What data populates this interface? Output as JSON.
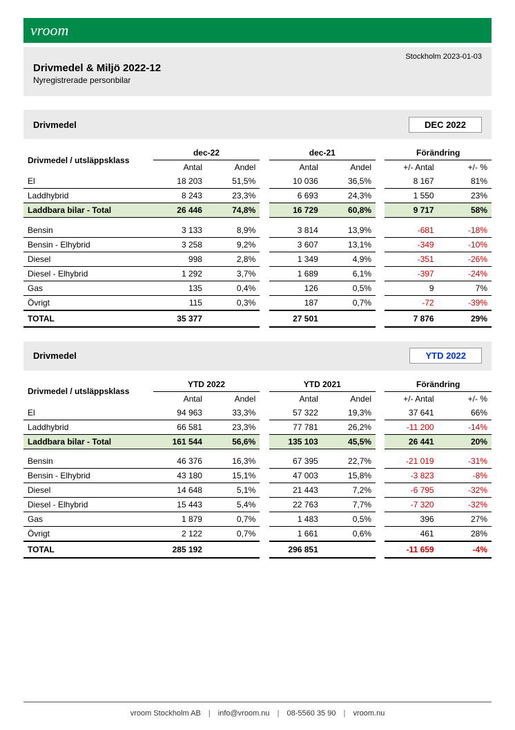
{
  "logo_text": "vroom",
  "date_top": "Stockholm 2023-01-03",
  "title": "Drivmedel & Miljö 2022-12",
  "subtitle": "Nyregistrerade personbilar",
  "colors": {
    "banner": "#008a4a",
    "section_bg": "#eaeaea",
    "highlight_row": "#ddebd1",
    "negative": "#cc0000",
    "badge_blue": "#0033cc"
  },
  "sections": [
    {
      "title": "Drivmedel",
      "badge": "DEC 2022",
      "badge_style": "black",
      "col_group_labels": [
        "dec-22",
        "dec-21",
        "Förändring"
      ],
      "row_header": "Drivmedel / utsläppsklass",
      "sub_headers": [
        "Antal",
        "Andel",
        "Antal",
        "Andel",
        "+/- Antal",
        "+/- %"
      ],
      "rows": [
        {
          "label": "El",
          "c1": "18 203",
          "c2": "51,5%",
          "c3": "10 036",
          "c4": "36,5%",
          "c5": "8 167",
          "c6": "81%",
          "neg": false
        },
        {
          "label": "Laddhybrid",
          "c1": "8 243",
          "c2": "23,3%",
          "c3": "6 693",
          "c4": "24,3%",
          "c5": "1 550",
          "c6": "23%",
          "neg": false
        }
      ],
      "highlight": {
        "label": "Laddbara bilar - Total",
        "c1": "26 446",
        "c2": "74,8%",
        "c3": "16 729",
        "c4": "60,8%",
        "c5": "9 717",
        "c6": "58%",
        "neg": false
      },
      "rows2": [
        {
          "label": "Bensin",
          "c1": "3 133",
          "c2": "8,9%",
          "c3": "3 814",
          "c4": "13,9%",
          "c5": "-681",
          "c6": "-18%",
          "neg": true
        },
        {
          "label": "Bensin - Elhybrid",
          "c1": "3 258",
          "c2": "9,2%",
          "c3": "3 607",
          "c4": "13,1%",
          "c5": "-349",
          "c6": "-10%",
          "neg": true
        },
        {
          "label": "Diesel",
          "c1": "998",
          "c2": "2,8%",
          "c3": "1 349",
          "c4": "4,9%",
          "c5": "-351",
          "c6": "-26%",
          "neg": true
        },
        {
          "label": "Diesel - Elhybrid",
          "c1": "1 292",
          "c2": "3,7%",
          "c3": "1 689",
          "c4": "6,1%",
          "c5": "-397",
          "c6": "-24%",
          "neg": true
        },
        {
          "label": "Gas",
          "c1": "135",
          "c2": "0,4%",
          "c3": "126",
          "c4": "0,5%",
          "c5": "9",
          "c6": "7%",
          "neg": false
        },
        {
          "label": "Övrigt",
          "c1": "115",
          "c2": "0,3%",
          "c3": "187",
          "c4": "0,7%",
          "c5": "-72",
          "c6": "-39%",
          "neg": true
        }
      ],
      "total": {
        "label": "TOTAL",
        "c1": "35 377",
        "c2": "",
        "c3": "27 501",
        "c4": "",
        "c5": "7 876",
        "c6": "29%",
        "neg": false
      }
    },
    {
      "title": "Drivmedel",
      "badge": "YTD 2022",
      "badge_style": "blue",
      "col_group_labels": [
        "YTD 2022",
        "YTD 2021",
        "Förändring"
      ],
      "row_header": "Drivmedel / utsläppsklass",
      "sub_headers": [
        "Antal",
        "Andel",
        "Antal",
        "Andel",
        "+/- Antal",
        "+/- %"
      ],
      "rows": [
        {
          "label": "El",
          "c1": "94 963",
          "c2": "33,3%",
          "c3": "57 322",
          "c4": "19,3%",
          "c5": "37 641",
          "c6": "66%",
          "neg": false
        },
        {
          "label": "Laddhybrid",
          "c1": "66 581",
          "c2": "23,3%",
          "c3": "77 781",
          "c4": "26,2%",
          "c5": "-11 200",
          "c6": "-14%",
          "neg": true
        }
      ],
      "highlight": {
        "label": "Laddbara bilar - Total",
        "c1": "161 544",
        "c2": "56,6%",
        "c3": "135 103",
        "c4": "45,5%",
        "c5": "26 441",
        "c6": "20%",
        "neg": false
      },
      "rows2": [
        {
          "label": "Bensin",
          "c1": "46 376",
          "c2": "16,3%",
          "c3": "67 395",
          "c4": "22,7%",
          "c5": "-21 019",
          "c6": "-31%",
          "neg": true
        },
        {
          "label": "Bensin - Elhybrid",
          "c1": "43 180",
          "c2": "15,1%",
          "c3": "47 003",
          "c4": "15,8%",
          "c5": "-3 823",
          "c6": "-8%",
          "neg": true
        },
        {
          "label": "Diesel",
          "c1": "14 648",
          "c2": "5,1%",
          "c3": "21 443",
          "c4": "7,2%",
          "c5": "-6 795",
          "c6": "-32%",
          "neg": true
        },
        {
          "label": "Diesel - Elhybrid",
          "c1": "15 443",
          "c2": "5,4%",
          "c3": "22 763",
          "c4": "7,7%",
          "c5": "-7 320",
          "c6": "-32%",
          "neg": true
        },
        {
          "label": "Gas",
          "c1": "1 879",
          "c2": "0,7%",
          "c3": "1 483",
          "c4": "0,5%",
          "c5": "396",
          "c6": "27%",
          "neg": false
        },
        {
          "label": "Övrigt",
          "c1": "2 122",
          "c2": "0,7%",
          "c3": "1 661",
          "c4": "0,6%",
          "c5": "461",
          "c6": "28%",
          "neg": false
        }
      ],
      "total": {
        "label": "TOTAL",
        "c1": "285 192",
        "c2": "",
        "c3": "296 851",
        "c4": "",
        "c5": "-11 659",
        "c6": "-4%",
        "neg": true
      }
    }
  ],
  "footer": {
    "company": "vroom Stockholm AB",
    "email": "info@vroom.nu",
    "phone": "08-5560 35 90",
    "site": "vroom.nu"
  }
}
